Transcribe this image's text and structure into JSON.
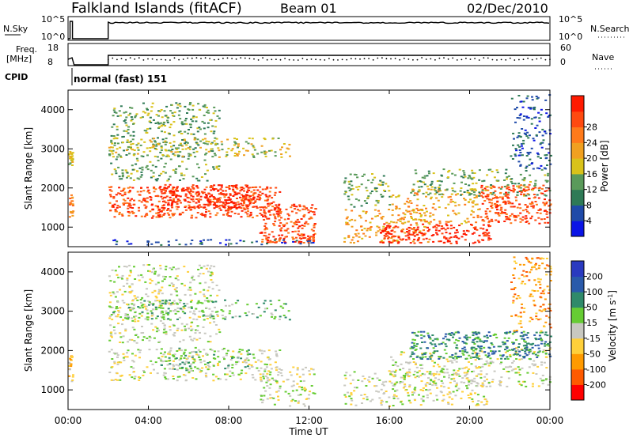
{
  "header": {
    "station": "Falkland Islands (fitACF)",
    "beam": "Beam 01",
    "date": "02/Dec/2010"
  },
  "top_panel": {
    "nsky_label": "N.Sky",
    "nsearch_label": "N.Search",
    "nsky_ticks": [
      "10^5",
      "10^0"
    ],
    "nsearch_ticks": [
      "10^5",
      "10^0"
    ],
    "freq_label": "Freq.",
    "freq_unit": "[MHz]",
    "freq_ticks": [
      "18",
      "8"
    ],
    "nave_label": "Nave",
    "nave_ticks": [
      "60",
      "0"
    ],
    "cpid_label": "CPID",
    "cpid_value": "normal (fast) 151"
  },
  "x_axis": {
    "label": "Time UT",
    "ticks": [
      "00:00",
      "04:00",
      "08:00",
      "12:00",
      "16:00",
      "20:00",
      "00:00"
    ]
  },
  "colors": {
    "power": [
      "#0a14e6",
      "#1f4aa8",
      "#2e7a56",
      "#5a9a5a",
      "#d9c21a",
      "#f0a020",
      "#ff7a1a",
      "#ff4a10",
      "#ff1a00"
    ],
    "velocity": [
      "#ff0000",
      "#ff5a00",
      "#ff9a00",
      "#ffd03a",
      "#c8c8c0",
      "#66cc33",
      "#2f8a6a",
      "#2a5aaa",
      "#2a3ac0"
    ]
  },
  "chart_data": [
    {
      "type": "heatmap",
      "title": "Power",
      "xlabel": "Time UT",
      "ylabel": "Slant Range [km]",
      "xlim_hours": [
        0,
        24
      ],
      "ylim_km": [
        500,
        4500
      ],
      "y_ticks": [
        1000,
        2000,
        3000,
        4000
      ],
      "colorbar": {
        "label": "Power [dB]",
        "ticks": [
          "4",
          "8",
          "12",
          "16",
          "20",
          "24",
          "28"
        ]
      },
      "regions": [
        {
          "t": [
            0.0,
            0.2
          ],
          "r": [
            1200,
            1900
          ],
          "level": 6
        },
        {
          "t": [
            0.0,
            0.2
          ],
          "r": [
            2600,
            3000
          ],
          "level": 4
        },
        {
          "t": [
            2.0,
            10.5
          ],
          "r": [
            1250,
            2050
          ],
          "level": 7
        },
        {
          "t": [
            4.5,
            9.5
          ],
          "r": [
            1500,
            2100
          ],
          "level": 8
        },
        {
          "t": [
            9.5,
            12.3
          ],
          "r": [
            600,
            1600
          ],
          "level": 7
        },
        {
          "t": [
            2.0,
            7.5
          ],
          "r": [
            2200,
            4200
          ],
          "level": 3
        },
        {
          "t": [
            2.0,
            11.0
          ],
          "r": [
            2800,
            3300
          ],
          "level": 4
        },
        {
          "t": [
            2.0,
            12.5
          ],
          "r": [
            560,
            700
          ],
          "level": 1
        },
        {
          "t": [
            13.7,
            18.0
          ],
          "r": [
            600,
            1500
          ],
          "level": 5
        },
        {
          "t": [
            13.7,
            16.0
          ],
          "r": [
            1500,
            2400
          ],
          "level": 3
        },
        {
          "t": [
            15.5,
            21.0
          ],
          "r": [
            600,
            1100
          ],
          "level": 8
        },
        {
          "t": [
            16.0,
            20.5
          ],
          "r": [
            1100,
            2000
          ],
          "level": 5
        },
        {
          "t": [
            20.5,
            24.0
          ],
          "r": [
            1100,
            2100
          ],
          "level": 7
        },
        {
          "t": [
            17.0,
            24.0
          ],
          "r": [
            1800,
            2500
          ],
          "level": 3
        },
        {
          "t": [
            22.0,
            24.0
          ],
          "r": [
            2500,
            4400
          ],
          "level": 1
        }
      ]
    },
    {
      "type": "heatmap",
      "title": "Velocity",
      "xlabel": "Time UT",
      "ylabel": "Slant Range [km]",
      "xlim_hours": [
        0,
        24
      ],
      "ylim_km": [
        500,
        4500
      ],
      "y_ticks": [
        1000,
        2000,
        3000,
        4000
      ],
      "colorbar": {
        "label": "Velocity [m s^-1]",
        "ticks": [
          "200",
          "100",
          "50",
          "15",
          "-15",
          "-50",
          "-100",
          "-200"
        ]
      },
      "regions": [
        {
          "t": [
            0.0,
            0.2
          ],
          "r": [
            1200,
            1900
          ],
          "level": 3
        },
        {
          "t": [
            2.0,
            10.5
          ],
          "r": [
            1250,
            2050
          ],
          "level": 4
        },
        {
          "t": [
            4.5,
            9.0
          ],
          "r": [
            1500,
            2100
          ],
          "level": 5
        },
        {
          "t": [
            9.5,
            12.3
          ],
          "r": [
            600,
            1600
          ],
          "level": 4
        },
        {
          "t": [
            2.0,
            7.5
          ],
          "r": [
            2200,
            4200
          ],
          "level": 4
        },
        {
          "t": [
            2.0,
            11.0
          ],
          "r": [
            2800,
            3300
          ],
          "level": 5
        },
        {
          "t": [
            13.7,
            21.0
          ],
          "r": [
            600,
            1500
          ],
          "level": 4
        },
        {
          "t": [
            16.0,
            20.5
          ],
          "r": [
            1100,
            2000
          ],
          "level": 4
        },
        {
          "t": [
            20.5,
            24.0
          ],
          "r": [
            1100,
            2100
          ],
          "level": 4
        },
        {
          "t": [
            17.0,
            24.0
          ],
          "r": [
            1800,
            2500
          ],
          "level": 6
        },
        {
          "t": [
            22.0,
            24.0
          ],
          "r": [
            2500,
            4400
          ],
          "level": 2
        }
      ]
    }
  ]
}
